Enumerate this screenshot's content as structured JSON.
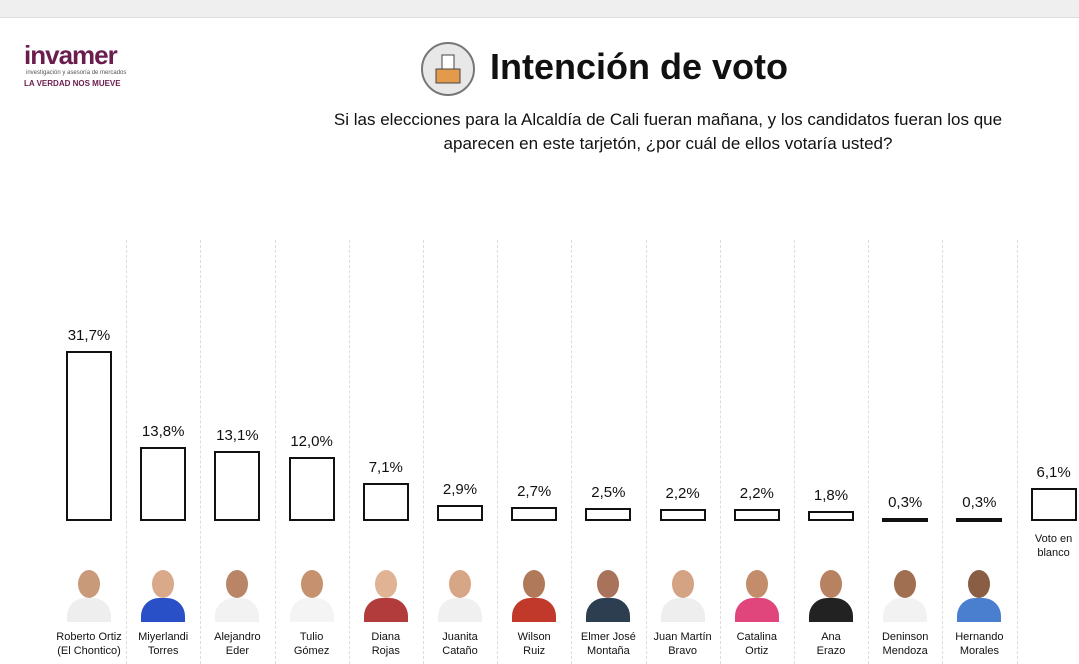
{
  "logo": {
    "brand": "invamer",
    "tagline": "investigación y asesoría de mercados",
    "slogan": "LA VERDAD NOS MUEVE"
  },
  "chart_data": {
    "type": "bar",
    "title": "Intención de voto",
    "subtitle": "Si las elecciones para la Alcaldía de Cali fueran mañana, y los candidatos fueran los que\naparecen en este tarjetón, ¿por cuál de ellos votaría usted?",
    "categories": [
      "Roberto Ortiz\n(El Chontico)",
      "Miyerlandi\nTorres",
      "Alejandro\nEder",
      "Tulio\nGómez",
      "Diana\nRojas",
      "Juanita\nCataño",
      "Wilson\nRuiz",
      "Elmer José\nMontaña",
      "Juan Martín\nBravo",
      "Catalina\nOrtiz",
      "Ana\nErazo",
      "Deninson\nMendoza",
      "Hernando\nMorales",
      "Voto en\nblanco"
    ],
    "values": [
      31.7,
      13.8,
      13.1,
      12.0,
      7.1,
      2.9,
      2.7,
      2.5,
      2.2,
      2.2,
      1.8,
      0.3,
      0.3,
      6.1
    ],
    "value_labels": [
      "31,7%",
      "13,8%",
      "13,1%",
      "12,0%",
      "7,1%",
      "2,9%",
      "2,7%",
      "2,5%",
      "2,2%",
      "2,2%",
      "1,8%",
      "0,3%",
      "0,3%",
      "6,1%"
    ],
    "color": "#ffffff"
  }
}
